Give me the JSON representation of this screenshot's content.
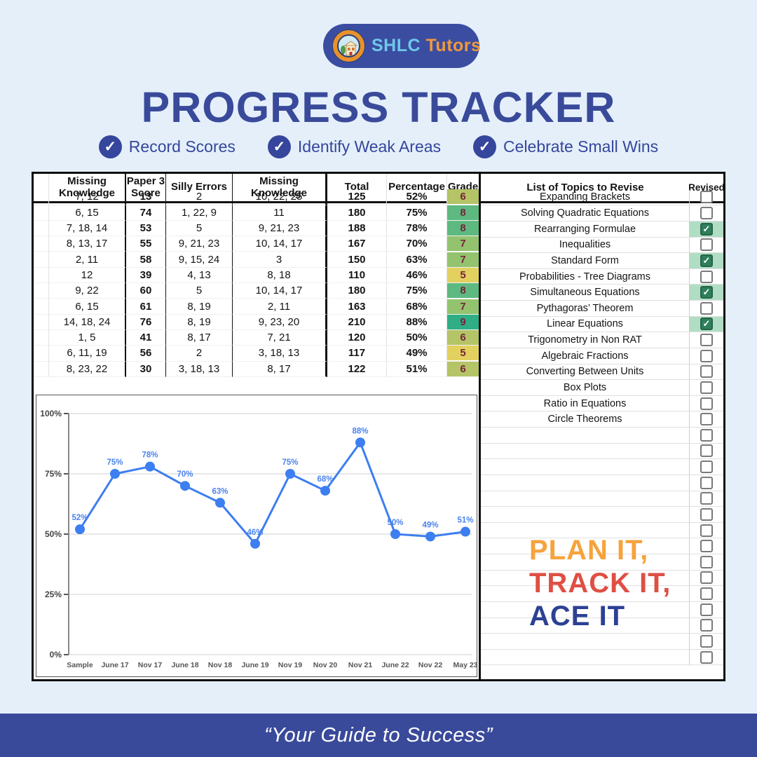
{
  "logo": {
    "brand_primary": "SHLC",
    "brand_secondary": "Tutors"
  },
  "title": "PROGRESS TRACKER",
  "badges": [
    {
      "label": "Record Scores"
    },
    {
      "label": "Identify Weak Areas"
    },
    {
      "label": "Celebrate Small Wins"
    }
  ],
  "scores_table": {
    "headers": [
      "",
      "Missing Knowledge",
      "Paper 3 Score",
      "Silly Errors",
      "Missing Knowledge",
      "Total",
      "Percentage",
      "Grade"
    ],
    "rows": [
      {
        "missing_knowledge": "7, 12",
        "paper3_score": "13",
        "silly_errors": "2",
        "missing_knowledge2": "10, 22, 25",
        "total": "125",
        "percentage": "52%",
        "grade": "6"
      },
      {
        "missing_knowledge": "6, 15",
        "paper3_score": "74",
        "silly_errors": "1, 22, 9",
        "missing_knowledge2": "11",
        "total": "180",
        "percentage": "75%",
        "grade": "8"
      },
      {
        "missing_knowledge": "7, 18, 14",
        "paper3_score": "53",
        "silly_errors": "5",
        "missing_knowledge2": "9, 21, 23",
        "total": "188",
        "percentage": "78%",
        "grade": "8"
      },
      {
        "missing_knowledge": "8, 13, 17",
        "paper3_score": "55",
        "silly_errors": "9, 21, 23",
        "missing_knowledge2": "10, 14, 17",
        "total": "167",
        "percentage": "70%",
        "grade": "7"
      },
      {
        "missing_knowledge": "2, 11",
        "paper3_score": "58",
        "silly_errors": "9, 15, 24",
        "missing_knowledge2": "3",
        "total": "150",
        "percentage": "63%",
        "grade": "7"
      },
      {
        "missing_knowledge": "12",
        "paper3_score": "39",
        "silly_errors": "4, 13",
        "missing_knowledge2": "8, 18",
        "total": "110",
        "percentage": "46%",
        "grade": "5"
      },
      {
        "missing_knowledge": "9, 22",
        "paper3_score": "60",
        "silly_errors": "5",
        "missing_knowledge2": "10, 14, 17",
        "total": "180",
        "percentage": "75%",
        "grade": "8"
      },
      {
        "missing_knowledge": "6, 15",
        "paper3_score": "61",
        "silly_errors": "8, 19",
        "missing_knowledge2": "2, 11",
        "total": "163",
        "percentage": "68%",
        "grade": "7"
      },
      {
        "missing_knowledge": "14, 18, 24",
        "paper3_score": "76",
        "silly_errors": "8, 19",
        "missing_knowledge2": "9, 23, 20",
        "total": "210",
        "percentage": "88%",
        "grade": "9"
      },
      {
        "missing_knowledge": "1, 5",
        "paper3_score": "41",
        "silly_errors": "8, 17",
        "missing_knowledge2": "7, 21",
        "total": "120",
        "percentage": "50%",
        "grade": "6"
      },
      {
        "missing_knowledge": "6, 11, 19",
        "paper3_score": "56",
        "silly_errors": "2",
        "missing_knowledge2": "3, 18, 13",
        "total": "117",
        "percentage": "49%",
        "grade": "5"
      },
      {
        "missing_knowledge": "8, 23, 22",
        "paper3_score": "30",
        "silly_errors": "3, 18, 13",
        "missing_knowledge2": "8, 17",
        "total": "122",
        "percentage": "51%",
        "grade": "6"
      }
    ]
  },
  "grade_colors": {
    "5": "#e3d15f",
    "6": "#b4c466",
    "7": "#93c36f",
    "8": "#5eb980",
    "9": "#2fae85"
  },
  "grade_text_color": "#762539",
  "topics": {
    "header": "List of Topics to Revise",
    "revised_header": "Revised",
    "items": [
      {
        "label": "Expanding Brackets",
        "revised": false
      },
      {
        "label": "Solving Quadratic Equations",
        "revised": false
      },
      {
        "label": "Rearranging Formulae",
        "revised": true
      },
      {
        "label": "Inequalities",
        "revised": false
      },
      {
        "label": "Standard Form",
        "revised": true
      },
      {
        "label": "Probabilities - Tree Diagrams",
        "revised": false
      },
      {
        "label": "Simultaneous Equations",
        "revised": true
      },
      {
        "label": "Pythagoras’ Theorem",
        "revised": false
      },
      {
        "label": "Linear Equations",
        "revised": true
      },
      {
        "label": "Trigonometry in Non RAT",
        "revised": false
      },
      {
        "label": "Algebraic Fractions",
        "revised": false
      },
      {
        "label": "Converting Between Units",
        "revised": false
      },
      {
        "label": "Box Plots",
        "revised": false
      },
      {
        "label": "Ratio in Equations",
        "revised": false
      },
      {
        "label": "Circle Theorems",
        "revised": false
      }
    ],
    "empty_rows": 15
  },
  "chart_data": {
    "type": "line",
    "x": [
      "Sample",
      "June 17",
      "Nov 17",
      "June 18",
      "Nov 18",
      "June 19",
      "Nov 19",
      "Nov 20",
      "Nov 21",
      "June 22",
      "Nov 22",
      "May 23"
    ],
    "values": [
      52,
      75,
      78,
      70,
      63,
      46,
      75,
      68,
      88,
      50,
      49,
      51
    ],
    "ylim": [
      0,
      100
    ],
    "gridlines": [
      0,
      25,
      50,
      75,
      100
    ],
    "ytick_suffix": "%",
    "grid": true,
    "legend": "none",
    "line_color": "#3d7ef0",
    "label_color": "#4b83ee"
  },
  "motto": {
    "line1": "PLAN IT,",
    "line2": "TRACK IT,",
    "line3": "ACE IT"
  },
  "footer": {
    "quote": "“Your Guide to Success”"
  }
}
